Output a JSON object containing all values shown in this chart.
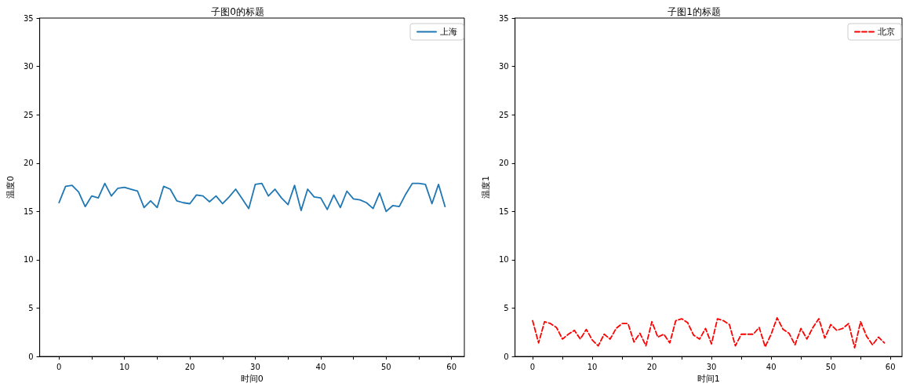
{
  "chart_data": [
    {
      "type": "line",
      "title": "子图0的标题",
      "xlabel": "时间0",
      "ylabel": "温度0",
      "legend": "top right",
      "grid": false,
      "marker": "none",
      "line_style": "solid",
      "x": [
        0,
        1,
        2,
        3,
        4,
        5,
        6,
        7,
        8,
        9,
        10,
        11,
        12,
        13,
        14,
        15,
        16,
        17,
        18,
        19,
        20,
        21,
        22,
        23,
        24,
        25,
        26,
        27,
        28,
        29,
        30,
        31,
        32,
        33,
        34,
        35,
        36,
        37,
        38,
        39,
        40,
        41,
        42,
        43,
        44,
        45,
        46,
        47,
        48,
        49,
        50,
        51,
        52,
        53,
        54,
        55,
        56,
        57,
        58,
        59
      ],
      "series": [
        {
          "name": "上海",
          "color": "#1f77b4",
          "values": [
            15.9,
            17.6,
            17.7,
            17.0,
            15.5,
            16.6,
            16.4,
            17.9,
            16.6,
            17.4,
            17.5,
            17.3,
            17.1,
            15.4,
            16.1,
            15.4,
            17.6,
            17.3,
            16.1,
            15.9,
            15.8,
            16.7,
            16.6,
            16.0,
            16.6,
            15.8,
            16.5,
            17.3,
            16.3,
            15.3,
            17.8,
            17.9,
            16.6,
            17.3,
            16.4,
            15.7,
            17.7,
            15.1,
            17.3,
            16.5,
            16.4,
            15.2,
            16.7,
            15.4,
            17.1,
            16.3,
            16.2,
            15.9,
            15.3,
            16.9,
            15.0,
            15.6,
            15.5,
            16.8,
            17.9,
            17.9,
            17.8,
            15.8,
            17.8,
            15.5
          ]
        }
      ],
      "xlim": [
        -2.95,
        61.95
      ],
      "xticks": [
        0,
        {
          "value": 5,
          "label": null
        },
        10,
        {
          "value": 15,
          "label": null
        },
        20,
        {
          "value": 25,
          "label": null
        },
        30,
        {
          "value": 35,
          "label": null
        },
        40,
        {
          "value": 45,
          "label": null
        },
        50,
        {
          "value": 55,
          "label": null
        },
        60
      ],
      "ylim": [
        0,
        35
      ],
      "yticks": [
        0,
        5,
        10,
        15,
        20,
        25,
        30,
        35
      ]
    },
    {
      "type": "line",
      "title": "子图1的标题",
      "xlabel": "时间1",
      "ylabel": "温度1",
      "legend": "top right",
      "grid": false,
      "marker": "none",
      "line_style": "dashed",
      "x": [
        0,
        1,
        2,
        3,
        4,
        5,
        6,
        7,
        8,
        9,
        10,
        11,
        12,
        13,
        14,
        15,
        16,
        17,
        18,
        19,
        20,
        21,
        22,
        23,
        24,
        25,
        26,
        27,
        28,
        29,
        30,
        31,
        32,
        33,
        34,
        35,
        36,
        37,
        38,
        39,
        40,
        41,
        42,
        43,
        44,
        45,
        46,
        47,
        48,
        49,
        50,
        51,
        52,
        53,
        54,
        55,
        56,
        57,
        58,
        59
      ],
      "series": [
        {
          "name": "北京",
          "color": "#ff0000",
          "values": [
            3.7,
            1.4,
            3.6,
            3.4,
            3.0,
            1.8,
            2.3,
            2.7,
            1.8,
            2.8,
            1.7,
            1.1,
            2.3,
            1.8,
            2.9,
            3.4,
            3.4,
            1.5,
            2.4,
            1.1,
            3.6,
            2.0,
            2.3,
            1.4,
            3.7,
            3.9,
            3.5,
            2.2,
            1.8,
            2.9,
            1.3,
            3.9,
            3.7,
            3.3,
            1.1,
            2.3,
            2.3,
            2.3,
            3.0,
            1.0,
            2.3,
            4.0,
            2.8,
            2.4,
            1.2,
            2.9,
            1.8,
            3.0,
            3.9,
            1.9,
            3.3,
            2.7,
            2.9,
            3.4,
            0.9,
            3.6,
            2.1,
            1.2,
            2.0,
            1.4
          ]
        }
      ],
      "xlim": [
        -2.95,
        61.95
      ],
      "xticks": [
        0,
        {
          "value": 5,
          "label": null
        },
        10,
        {
          "value": 15,
          "label": null
        },
        20,
        {
          "value": 25,
          "label": null
        },
        30,
        {
          "value": 35,
          "label": null
        },
        40,
        {
          "value": 45,
          "label": null
        },
        50,
        {
          "value": 55,
          "label": null
        },
        60
      ],
      "ylim": [
        0,
        35
      ],
      "yticks": [
        0,
        5,
        10,
        15,
        20,
        25,
        30,
        35
      ]
    }
  ]
}
